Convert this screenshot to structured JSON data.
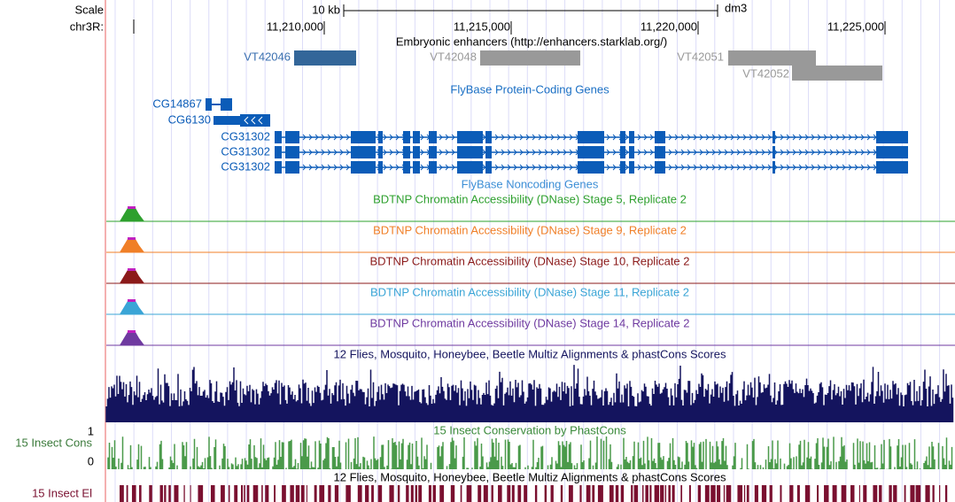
{
  "ruler": {
    "scale_label": "Scale",
    "span": "10 kb",
    "assembly": "dm3",
    "chrom": "chr3R:",
    "positions": [
      "11,210,000",
      "11,215,000",
      "11,220,000",
      "11,225,000"
    ]
  },
  "tracks": {
    "enhancers": {
      "title": "Embryonic enhancers (http://enhancers.starklab.org/)",
      "items": [
        "VT42046",
        "VT42048",
        "VT42051",
        "VT42052"
      ]
    },
    "protein_genes": {
      "title": "FlyBase Protein-Coding Genes",
      "items": [
        "CG14867",
        "CG6130",
        "CG31302",
        "CG31302",
        "CG31302"
      ]
    },
    "noncoding_genes": {
      "title": "FlyBase Noncoding Genes"
    },
    "dnase": [
      "BDTNP Chromatin Accessibility (DNase) Stage 5, Replicate 2",
      "BDTNP Chromatin Accessibility (DNase) Stage 9, Replicate 2",
      "BDTNP Chromatin Accessibility (DNase) Stage 10, Replicate 2",
      "BDTNP Chromatin Accessibility (DNase) Stage 11, Replicate 2",
      "BDTNP Chromatin Accessibility (DNase) Stage 14, Replicate 2"
    ],
    "multiz": {
      "title": "12 Flies, Mosquito, Honeybee, Beetle Multiz Alignments & phastCons Scores"
    },
    "phastcons": {
      "title": "15 Insect Conservation by PhastCons",
      "left_label": "15 Insect Cons",
      "max": 1,
      "min": 0
    },
    "elements": {
      "title": "12 Flies, Mosquito, Honeybee, Beetle Multiz Alignments & phastCons Scores",
      "left_label": "15 Insect El"
    }
  }
}
